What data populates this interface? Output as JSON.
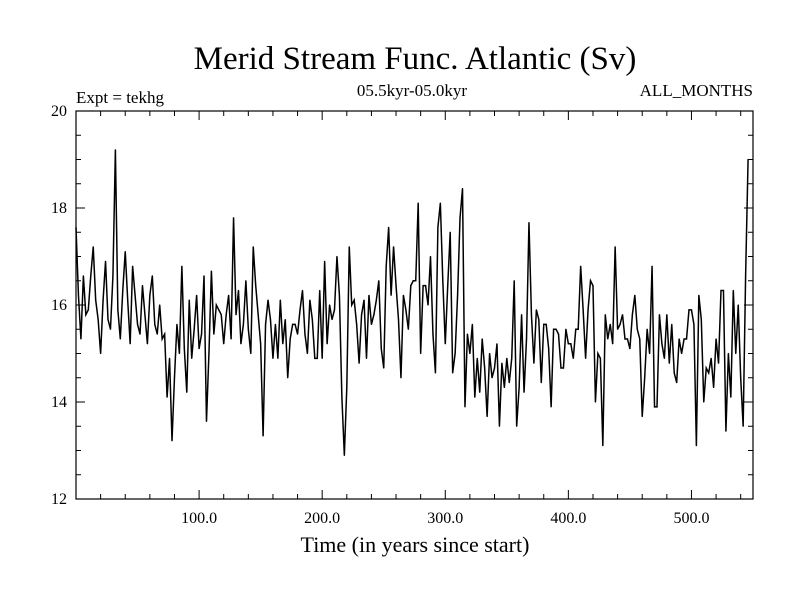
{
  "chart_data": {
    "type": "line",
    "title": "Merid Stream Func. Atlantic (Sv)",
    "experiment_label": "Expt = tekhg",
    "period_label": "05.5kyr-05.0kyr",
    "months_label": "ALL_MONTHS",
    "xlabel": "Time (in years since start)",
    "ylabel": "",
    "xlim": [
      0,
      550
    ],
    "ylim": [
      12,
      20
    ],
    "x_ticks": [
      100,
      200,
      300,
      400,
      500
    ],
    "x_tick_labels": [
      "100.0",
      "200.0",
      "300.0",
      "400.0",
      "500.0"
    ],
    "y_ticks": [
      12,
      14,
      16,
      18,
      20
    ],
    "y_tick_labels": [
      "12",
      "14",
      "16",
      "18",
      "20"
    ],
    "series": [
      {
        "name": "Merid Stream Func. Atlantic",
        "x_start": 0,
        "x_step": 2,
        "values": [
          17.6,
          16.2,
          15.3,
          16.6,
          15.8,
          15.9,
          16.6,
          17.2,
          16.1,
          15.7,
          15.0,
          16.1,
          16.9,
          15.7,
          15.5,
          16.6,
          19.2,
          15.9,
          15.3,
          16.3,
          17.1,
          16.1,
          15.2,
          16.8,
          16.2,
          15.6,
          15.4,
          16.4,
          15.8,
          15.2,
          16.2,
          16.6,
          15.6,
          15.4,
          16.0,
          15.3,
          15.4,
          14.1,
          14.9,
          13.2,
          14.5,
          15.6,
          15.0,
          16.8,
          15.1,
          14.2,
          16.1,
          14.9,
          15.5,
          16.2,
          15.1,
          15.4,
          16.6,
          13.6,
          15.0,
          16.7,
          15.4,
          16.0,
          15.9,
          15.8,
          15.2,
          15.8,
          16.2,
          15.3,
          17.8,
          15.8,
          16.3,
          15.2,
          15.6,
          16.5,
          15.5,
          15.0,
          17.2,
          16.4,
          15.8,
          15.2,
          13.3,
          15.6,
          16.1,
          15.7,
          14.9,
          15.6,
          14.9,
          16.1,
          15.2,
          15.7,
          14.5,
          15.3,
          15.6,
          15.6,
          15.4,
          15.9,
          16.3,
          15.4,
          15.0,
          16.1,
          15.7,
          14.9,
          14.9,
          16.3,
          14.9,
          16.9,
          15.2,
          16.0,
          15.7,
          15.9,
          17.0,
          16.2,
          14.1,
          12.9,
          14.3,
          17.2,
          16.0,
          16.1,
          15.6,
          14.8,
          15.8,
          16.1,
          14.9,
          16.2,
          15.6,
          15.8,
          16.1,
          16.5,
          15.1,
          14.7,
          16.8,
          17.6,
          16.2,
          17.2,
          16.4,
          15.7,
          14.5,
          16.2,
          15.9,
          15.5,
          16.4,
          16.5,
          16.5,
          18.1,
          15.0,
          16.4,
          16.4,
          16.0,
          17.0,
          15.4,
          14.6,
          17.6,
          18.1,
          16.5,
          15.2,
          16.4,
          17.5,
          14.6,
          15.0,
          16.2,
          17.8,
          18.4,
          13.9,
          15.4,
          15.0,
          15.6,
          14.1,
          14.9,
          14.2,
          15.3,
          14.7,
          13.7,
          15.0,
          14.5,
          14.7,
          15.2,
          13.5,
          14.8,
          14.3,
          14.9,
          14.4,
          14.9,
          16.5,
          13.5,
          14.3,
          15.8,
          14.2,
          15.3,
          17.7,
          15.8,
          14.8,
          15.9,
          15.7,
          14.4,
          15.6,
          15.6,
          15.1,
          13.9,
          15.5,
          15.5,
          15.4,
          14.7,
          14.7,
          15.5,
          15.2,
          15.2,
          14.9,
          15.5,
          15.5,
          16.8,
          15.9,
          14.9,
          15.9,
          16.5,
          16.4,
          14.0,
          15.0,
          14.9,
          13.1,
          15.8,
          15.3,
          15.6,
          15.2,
          17.2,
          15.5,
          15.6,
          15.8,
          15.3,
          15.3,
          15.1,
          15.8,
          16.2,
          15.5,
          15.3,
          13.7,
          14.5,
          15.5,
          15.0,
          16.8,
          13.9,
          13.9,
          15.8,
          15.2,
          14.9,
          15.8,
          14.8,
          15.6,
          14.6,
          14.4,
          15.3,
          15.0,
          15.3,
          15.3,
          15.9,
          15.9,
          15.6,
          13.1,
          16.2,
          15.7,
          14.0,
          14.7,
          14.6,
          14.9,
          14.3,
          15.3,
          14.8,
          16.3,
          16.3,
          13.4,
          15.0,
          14.1,
          16.3,
          15.0,
          16.0,
          14.5,
          13.5,
          16.6,
          19.0
        ]
      }
    ]
  }
}
